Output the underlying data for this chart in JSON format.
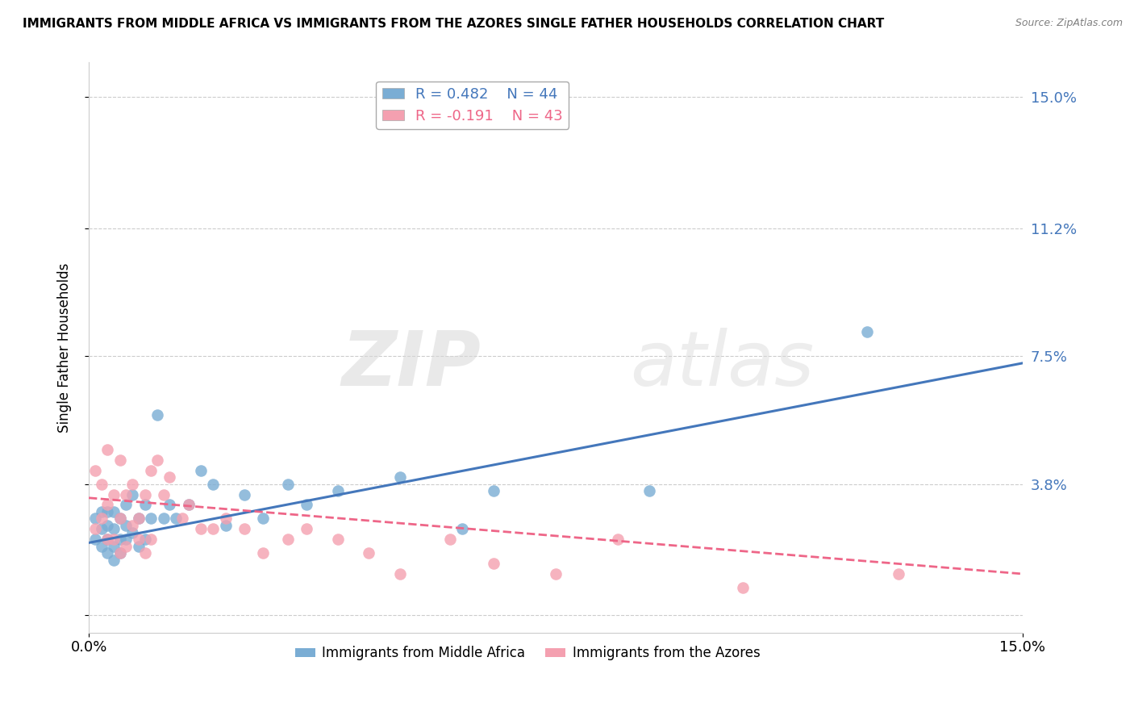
{
  "title": "IMMIGRANTS FROM MIDDLE AFRICA VS IMMIGRANTS FROM THE AZORES SINGLE FATHER HOUSEHOLDS CORRELATION CHART",
  "source": "Source: ZipAtlas.com",
  "ylabel": "Single Father Households",
  "xmin": 0.0,
  "xmax": 0.15,
  "ymin": -0.005,
  "ymax": 0.16,
  "ytick_vals": [
    0.0,
    0.038,
    0.075,
    0.112,
    0.15
  ],
  "left_ytick_labels": [
    "",
    "",
    "",
    "",
    ""
  ],
  "right_ytick_labels": [
    "",
    "3.8%",
    "7.5%",
    "11.2%",
    "15.0%"
  ],
  "xtick_vals": [
    0.0,
    0.15
  ],
  "xtick_labels": [
    "0.0%",
    "15.0%"
  ],
  "blue_r": "R = 0.482",
  "blue_n": "N = 44",
  "pink_r": "R = -0.191",
  "pink_n": "N = 43",
  "blue_color": "#7aadd4",
  "pink_color": "#f4a0b0",
  "blue_line_color": "#4477bb",
  "pink_line_color": "#ee6688",
  "legend_label_blue": "Immigrants from Middle Africa",
  "legend_label_pink": "Immigrants from the Azores",
  "watermark_zip": "ZIP",
  "watermark_atlas": "atlas",
  "blue_scatter_x": [
    0.001,
    0.001,
    0.002,
    0.002,
    0.002,
    0.003,
    0.003,
    0.003,
    0.003,
    0.004,
    0.004,
    0.004,
    0.004,
    0.005,
    0.005,
    0.005,
    0.006,
    0.006,
    0.006,
    0.007,
    0.007,
    0.008,
    0.008,
    0.009,
    0.009,
    0.01,
    0.011,
    0.012,
    0.013,
    0.014,
    0.016,
    0.018,
    0.02,
    0.022,
    0.025,
    0.028,
    0.032,
    0.035,
    0.04,
    0.05,
    0.06,
    0.065,
    0.09,
    0.125
  ],
  "blue_scatter_y": [
    0.022,
    0.028,
    0.02,
    0.025,
    0.03,
    0.018,
    0.022,
    0.026,
    0.03,
    0.016,
    0.02,
    0.025,
    0.03,
    0.018,
    0.022,
    0.028,
    0.022,
    0.026,
    0.032,
    0.024,
    0.035,
    0.02,
    0.028,
    0.022,
    0.032,
    0.028,
    0.058,
    0.028,
    0.032,
    0.028,
    0.032,
    0.042,
    0.038,
    0.026,
    0.035,
    0.028,
    0.038,
    0.032,
    0.036,
    0.04,
    0.025,
    0.036,
    0.036,
    0.082
  ],
  "pink_scatter_x": [
    0.001,
    0.001,
    0.002,
    0.002,
    0.003,
    0.003,
    0.003,
    0.004,
    0.004,
    0.005,
    0.005,
    0.005,
    0.006,
    0.006,
    0.007,
    0.007,
    0.008,
    0.008,
    0.009,
    0.009,
    0.01,
    0.01,
    0.011,
    0.012,
    0.013,
    0.015,
    0.016,
    0.018,
    0.02,
    0.022,
    0.025,
    0.028,
    0.032,
    0.035,
    0.04,
    0.045,
    0.05,
    0.058,
    0.065,
    0.075,
    0.085,
    0.105,
    0.13
  ],
  "pink_scatter_y": [
    0.025,
    0.042,
    0.028,
    0.038,
    0.022,
    0.032,
    0.048,
    0.022,
    0.035,
    0.018,
    0.028,
    0.045,
    0.02,
    0.035,
    0.026,
    0.038,
    0.022,
    0.028,
    0.018,
    0.035,
    0.022,
    0.042,
    0.045,
    0.035,
    0.04,
    0.028,
    0.032,
    0.025,
    0.025,
    0.028,
    0.025,
    0.018,
    0.022,
    0.025,
    0.022,
    0.018,
    0.012,
    0.022,
    0.015,
    0.012,
    0.022,
    0.008,
    0.012
  ],
  "blue_trend_x": [
    0.0,
    0.15
  ],
  "blue_trend_y": [
    0.021,
    0.073
  ],
  "pink_trend_x": [
    0.0,
    0.15
  ],
  "pink_trend_y": [
    0.034,
    0.012
  ],
  "grid_color": "#cccccc",
  "background_color": "#ffffff"
}
